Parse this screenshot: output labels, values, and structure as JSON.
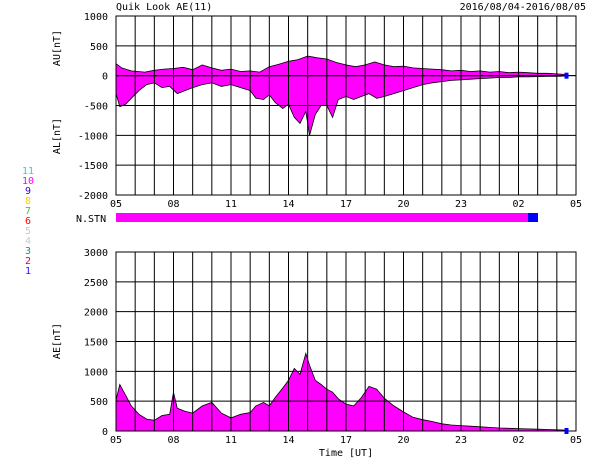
{
  "header": {
    "title": "Quik Look AE(11)",
    "date_range": "2016/08/04-2016/08/05"
  },
  "x_axis": {
    "ticks": [
      "05",
      "08",
      "11",
      "14",
      "17",
      "20",
      "23",
      "02",
      "05"
    ],
    "label": "Time [UT]"
  },
  "nstn_label": "N.STN",
  "station_legend": [
    {
      "label": "11",
      "color": "#00e5e5"
    },
    {
      "label": "10",
      "color": "#ff00ff"
    },
    {
      "label": "9",
      "color": "#3a00c8"
    },
    {
      "label": "8",
      "color": "#ffd000"
    },
    {
      "label": "7",
      "color": "#33cc33"
    },
    {
      "label": "6",
      "color": "#ff0000"
    },
    {
      "label": "5",
      "color": "#c8c8c8"
    },
    {
      "label": "4",
      "color": "#c8c8c8"
    },
    {
      "label": "3",
      "color": "#009999"
    },
    {
      "label": "2",
      "color": "#cc0066"
    },
    {
      "label": "1",
      "color": "#1a1aff"
    }
  ],
  "colors": {
    "fill": "#ff00ff",
    "nstn_main": "#ff00ff",
    "nstn_end": "#0000ff",
    "grid": "#000000"
  },
  "chart_data": [
    {
      "type": "area",
      "ylabel_top": "AU[nT]",
      "ylabel_bottom": "AL[nT]",
      "ylim": [
        -2000,
        1000
      ],
      "yticks": [
        "1000",
        "500",
        "0",
        "-500",
        "-1000",
        "-1500",
        "-2000"
      ],
      "xlim_hours": [
        5,
        29
      ],
      "series": [
        {
          "name": "AU",
          "x": [
            5,
            5.3,
            5.8,
            6.5,
            7,
            7.5,
            8,
            8.5,
            9,
            9.5,
            10,
            10.5,
            11,
            11.5,
            12,
            12.5,
            13,
            13.5,
            14,
            14.5,
            15,
            15.5,
            16,
            16.5,
            17,
            17.5,
            18,
            18.5,
            19,
            19.5,
            20,
            20.5,
            21,
            21.5,
            22,
            22.5,
            23,
            23.5,
            24,
            24.5,
            25,
            25.5,
            26,
            26.5,
            27,
            27.5,
            28,
            28.5
          ],
          "values": [
            200,
            130,
            80,
            60,
            90,
            110,
            120,
            140,
            100,
            180,
            130,
            90,
            110,
            70,
            80,
            60,
            150,
            190,
            240,
            270,
            330,
            300,
            280,
            220,
            180,
            150,
            180,
            230,
            180,
            150,
            160,
            130,
            120,
            110,
            100,
            80,
            90,
            70,
            80,
            60,
            70,
            50,
            60,
            50,
            40,
            40,
            30,
            20
          ]
        },
        {
          "name": "AL",
          "x": [
            5,
            5.2,
            5.5,
            5.8,
            6.2,
            6.6,
            7,
            7.4,
            7.8,
            8.2,
            8.6,
            9,
            9.5,
            10,
            10.5,
            11,
            11.5,
            12,
            12.3,
            12.7,
            13,
            13.3,
            13.7,
            14,
            14.3,
            14.6,
            14.9,
            15.1,
            15.4,
            15.7,
            16,
            16.3,
            16.6,
            17,
            17.4,
            17.8,
            18.2,
            18.6,
            19,
            19.5,
            20,
            20.5,
            21,
            21.5,
            22,
            22.5,
            23,
            23.5,
            24,
            24.5,
            25,
            25.5,
            26,
            26.5,
            27,
            27.5,
            28,
            28.5
          ],
          "values": [
            -300,
            -520,
            -480,
            -380,
            -250,
            -150,
            -120,
            -200,
            -180,
            -300,
            -250,
            -200,
            -150,
            -120,
            -180,
            -150,
            -200,
            -250,
            -380,
            -400,
            -320,
            -450,
            -550,
            -480,
            -700,
            -800,
            -600,
            -1000,
            -650,
            -500,
            -500,
            -700,
            -400,
            -350,
            -400,
            -350,
            -300,
            -380,
            -350,
            -300,
            -250,
            -200,
            -150,
            -120,
            -100,
            -80,
            -70,
            -60,
            -50,
            -40,
            -30,
            -30,
            -20,
            -20,
            -15,
            -10,
            -10,
            -5
          ]
        }
      ]
    },
    {
      "type": "area",
      "ylabel": "AE[nT]",
      "ylim": [
        0,
        3000
      ],
      "yticks": [
        "3000",
        "2500",
        "2000",
        "1500",
        "1000",
        "500",
        "0"
      ],
      "xlim_hours": [
        5,
        29
      ],
      "series": [
        {
          "name": "AE",
          "x": [
            5,
            5.2,
            5.5,
            5.8,
            6.2,
            6.6,
            7,
            7.4,
            7.8,
            8,
            8.2,
            8.6,
            9,
            9.5,
            10,
            10.5,
            11,
            11.5,
            12,
            12.3,
            12.7,
            13,
            13.3,
            13.7,
            14,
            14.3,
            14.6,
            14.9,
            15.1,
            15.4,
            15.7,
            16,
            16.3,
            16.6,
            17,
            17.4,
            17.8,
            18.2,
            18.6,
            19,
            19.5,
            20,
            20.5,
            21,
            21.5,
            22,
            22.5,
            23,
            23.5,
            24,
            24.5,
            25,
            25.5,
            26,
            26.5,
            27,
            27.5,
            28,
            28.5
          ],
          "values": [
            520,
            780,
            600,
            420,
            280,
            200,
            180,
            260,
            280,
            650,
            380,
            330,
            300,
            420,
            480,
            300,
            220,
            280,
            310,
            420,
            480,
            420,
            560,
            720,
            850,
            1050,
            950,
            1300,
            1100,
            850,
            780,
            700,
            650,
            540,
            450,
            420,
            560,
            750,
            700,
            550,
            420,
            320,
            230,
            190,
            160,
            120,
            100,
            90,
            80,
            70,
            60,
            50,
            45,
            40,
            35,
            30,
            25,
            20,
            15
          ]
        }
      ]
    }
  ]
}
